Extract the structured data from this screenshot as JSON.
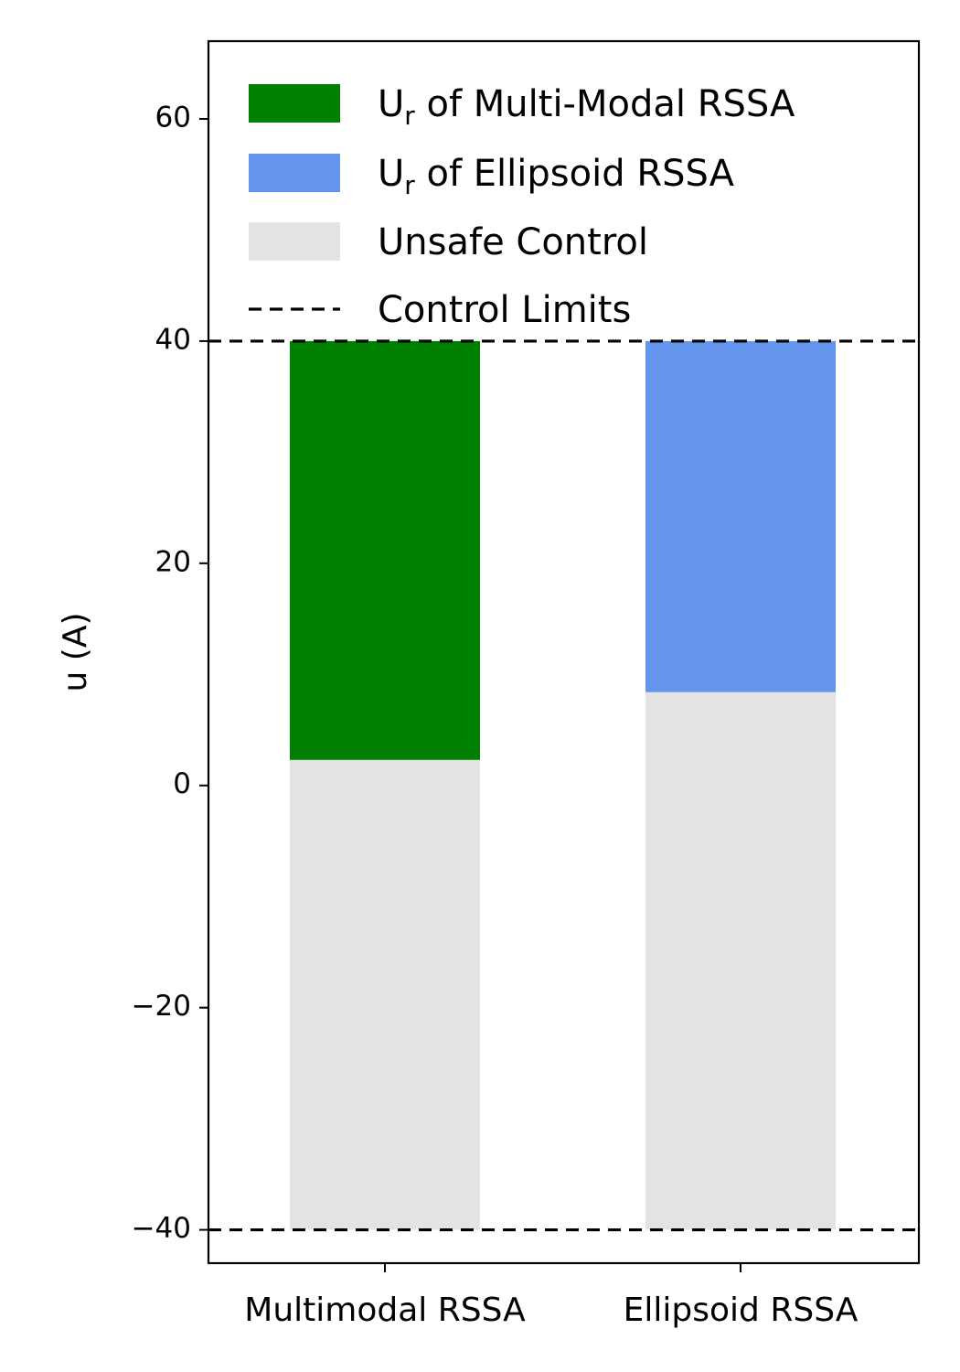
{
  "chart_data": {
    "type": "bar",
    "categories": [
      "Multimodal RSSA",
      "Ellipsoid RSSA"
    ],
    "ylabel": "u (A)",
    "ylim": [
      -43,
      67
    ],
    "yticks": [
      -40,
      -20,
      0,
      20,
      40,
      60
    ],
    "ytick_labels": [
      "−40",
      "−20",
      "0",
      "20",
      "40",
      "60"
    ],
    "series": [
      {
        "name": "Unsafe Control",
        "color": "#e3e3e3",
        "bottoms": [
          -40,
          -40
        ],
        "tops": [
          2.3,
          8.4
        ]
      },
      {
        "name": "Uᵣ of Multi-Modal RSSA",
        "color": "#008000",
        "bottoms": [
          2.3,
          null
        ],
        "tops": [
          40,
          null
        ]
      },
      {
        "name": "Uᵣ of Ellipsoid RSSA",
        "color": "#6495ed",
        "bottoms": [
          null,
          8.4
        ],
        "tops": [
          null,
          40
        ]
      }
    ],
    "control_limits": [
      40,
      -40
    ],
    "grid": false,
    "legend_position": "top",
    "legend": [
      {
        "kind": "patch",
        "color": "#008000",
        "main": "U",
        "sub": "r",
        "rest": " of Multi-Modal RSSA"
      },
      {
        "kind": "patch",
        "color": "#6495ed",
        "main": "U",
        "sub": "r",
        "rest": " of Ellipsoid RSSA"
      },
      {
        "kind": "patch",
        "color": "#e3e3e3",
        "main": "Unsafe Control",
        "sub": "",
        "rest": ""
      },
      {
        "kind": "dashed",
        "color": "#000000",
        "main": "Control Limits",
        "sub": "",
        "rest": ""
      }
    ]
  }
}
